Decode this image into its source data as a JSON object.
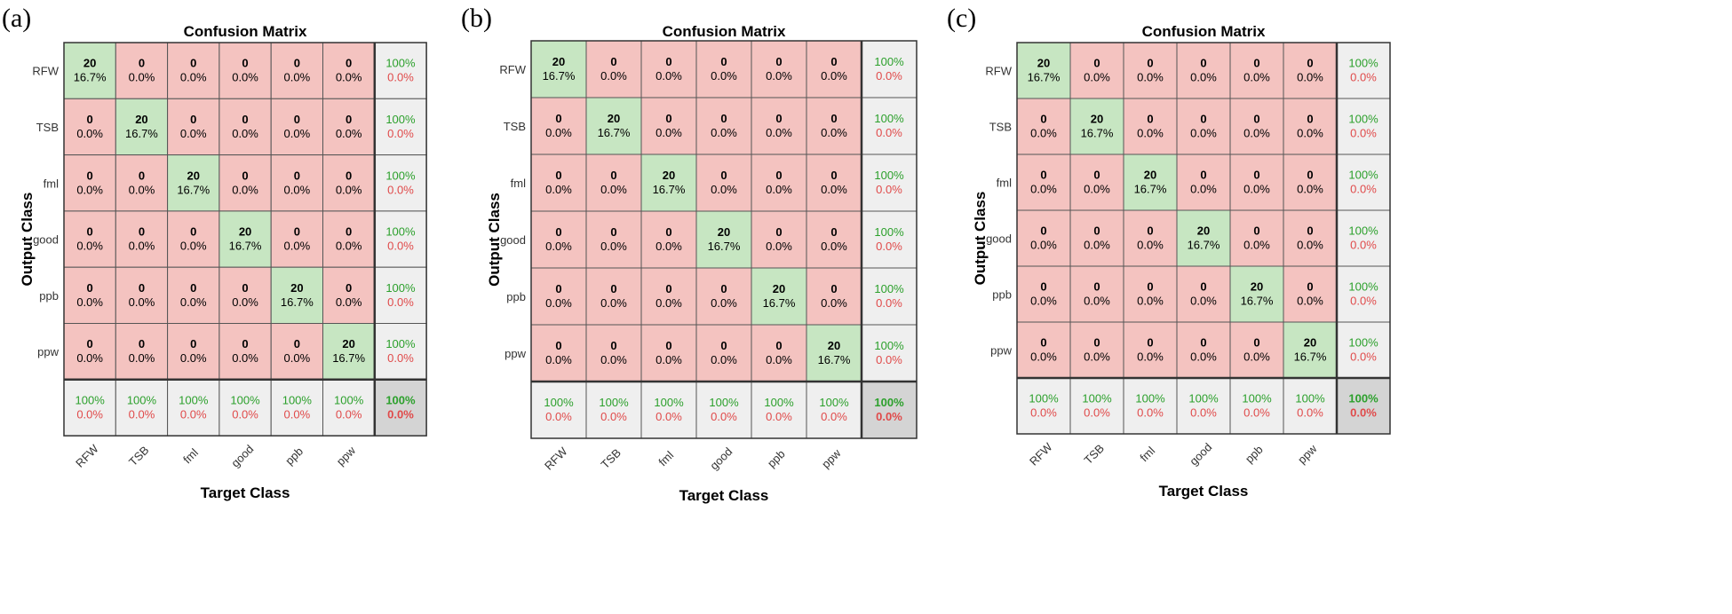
{
  "chart_data": [
    {
      "panel_label": "(a)",
      "type": "heatmap",
      "title": "Confusion Matrix",
      "xlabel": "Target Class",
      "ylabel": "Output Class",
      "classes": [
        "RFW",
        "TSB",
        "fml",
        "good",
        "ppb",
        "ppw"
      ],
      "counts": [
        [
          20,
          0,
          0,
          0,
          0,
          0
        ],
        [
          0,
          20,
          0,
          0,
          0,
          0
        ],
        [
          0,
          0,
          20,
          0,
          0,
          0
        ],
        [
          0,
          0,
          0,
          20,
          0,
          0
        ],
        [
          0,
          0,
          0,
          0,
          20,
          0
        ],
        [
          0,
          0,
          0,
          0,
          0,
          20
        ]
      ],
      "percents": [
        [
          "16.7%",
          "0.0%",
          "0.0%",
          "0.0%",
          "0.0%",
          "0.0%"
        ],
        [
          "0.0%",
          "16.7%",
          "0.0%",
          "0.0%",
          "0.0%",
          "0.0%"
        ],
        [
          "0.0%",
          "0.0%",
          "16.7%",
          "0.0%",
          "0.0%",
          "0.0%"
        ],
        [
          "0.0%",
          "0.0%",
          "0.0%",
          "16.7%",
          "0.0%",
          "0.0%"
        ],
        [
          "0.0%",
          "0.0%",
          "0.0%",
          "0.0%",
          "16.7%",
          "0.0%"
        ],
        [
          "0.0%",
          "0.0%",
          "0.0%",
          "0.0%",
          "0.0%",
          "16.7%"
        ]
      ],
      "row_summary": [
        [
          "100%",
          "0.0%"
        ],
        [
          "100%",
          "0.0%"
        ],
        [
          "100%",
          "0.0%"
        ],
        [
          "100%",
          "0.0%"
        ],
        [
          "100%",
          "0.0%"
        ],
        [
          "100%",
          "0.0%"
        ]
      ],
      "col_summary": [
        [
          "100%",
          "0.0%"
        ],
        [
          "100%",
          "0.0%"
        ],
        [
          "100%",
          "0.0%"
        ],
        [
          "100%",
          "0.0%"
        ],
        [
          "100%",
          "0.0%"
        ],
        [
          "100%",
          "0.0%"
        ]
      ],
      "overall": [
        "100%",
        "0.0%"
      ]
    },
    {
      "panel_label": "(b)",
      "type": "heatmap",
      "title": "Confusion Matrix",
      "xlabel": "Target Class",
      "ylabel": "Output Class",
      "classes": [
        "RFW",
        "TSB",
        "fml",
        "good",
        "ppb",
        "ppw"
      ],
      "counts": [
        [
          20,
          0,
          0,
          0,
          0,
          0
        ],
        [
          0,
          20,
          0,
          0,
          0,
          0
        ],
        [
          0,
          0,
          20,
          0,
          0,
          0
        ],
        [
          0,
          0,
          0,
          20,
          0,
          0
        ],
        [
          0,
          0,
          0,
          0,
          20,
          0
        ],
        [
          0,
          0,
          0,
          0,
          0,
          20
        ]
      ],
      "percents": [
        [
          "16.7%",
          "0.0%",
          "0.0%",
          "0.0%",
          "0.0%",
          "0.0%"
        ],
        [
          "0.0%",
          "16.7%",
          "0.0%",
          "0.0%",
          "0.0%",
          "0.0%"
        ],
        [
          "0.0%",
          "0.0%",
          "16.7%",
          "0.0%",
          "0.0%",
          "0.0%"
        ],
        [
          "0.0%",
          "0.0%",
          "0.0%",
          "16.7%",
          "0.0%",
          "0.0%"
        ],
        [
          "0.0%",
          "0.0%",
          "0.0%",
          "0.0%",
          "16.7%",
          "0.0%"
        ],
        [
          "0.0%",
          "0.0%",
          "0.0%",
          "0.0%",
          "0.0%",
          "16.7%"
        ]
      ],
      "row_summary": [
        [
          "100%",
          "0.0%"
        ],
        [
          "100%",
          "0.0%"
        ],
        [
          "100%",
          "0.0%"
        ],
        [
          "100%",
          "0.0%"
        ],
        [
          "100%",
          "0.0%"
        ],
        [
          "100%",
          "0.0%"
        ]
      ],
      "col_summary": [
        [
          "100%",
          "0.0%"
        ],
        [
          "100%",
          "0.0%"
        ],
        [
          "100%",
          "0.0%"
        ],
        [
          "100%",
          "0.0%"
        ],
        [
          "100%",
          "0.0%"
        ],
        [
          "100%",
          "0.0%"
        ]
      ],
      "overall": [
        "100%",
        "0.0%"
      ]
    },
    {
      "panel_label": "(c)",
      "type": "heatmap",
      "title": "Confusion Matrix",
      "xlabel": "Target Class",
      "ylabel": "Output Class",
      "classes": [
        "RFW",
        "TSB",
        "fml",
        "good",
        "ppb",
        "ppw"
      ],
      "counts": [
        [
          20,
          0,
          0,
          0,
          0,
          0
        ],
        [
          0,
          20,
          0,
          0,
          0,
          0
        ],
        [
          0,
          0,
          20,
          0,
          0,
          0
        ],
        [
          0,
          0,
          0,
          20,
          0,
          0
        ],
        [
          0,
          0,
          0,
          0,
          20,
          0
        ],
        [
          0,
          0,
          0,
          0,
          0,
          20
        ]
      ],
      "percents": [
        [
          "16.7%",
          "0.0%",
          "0.0%",
          "0.0%",
          "0.0%",
          "0.0%"
        ],
        [
          "0.0%",
          "16.7%",
          "0.0%",
          "0.0%",
          "0.0%",
          "0.0%"
        ],
        [
          "0.0%",
          "0.0%",
          "16.7%",
          "0.0%",
          "0.0%",
          "0.0%"
        ],
        [
          "0.0%",
          "0.0%",
          "0.0%",
          "16.7%",
          "0.0%",
          "0.0%"
        ],
        [
          "0.0%",
          "0.0%",
          "0.0%",
          "0.0%",
          "16.7%",
          "0.0%"
        ],
        [
          "0.0%",
          "0.0%",
          "0.0%",
          "0.0%",
          "0.0%",
          "16.7%"
        ]
      ],
      "row_summary": [
        [
          "100%",
          "0.0%"
        ],
        [
          "100%",
          "0.0%"
        ],
        [
          "100%",
          "0.0%"
        ],
        [
          "100%",
          "0.0%"
        ],
        [
          "100%",
          "0.0%"
        ],
        [
          "100%",
          "0.0%"
        ]
      ],
      "col_summary": [
        [
          "100%",
          "0.0%"
        ],
        [
          "100%",
          "0.0%"
        ],
        [
          "100%",
          "0.0%"
        ],
        [
          "100%",
          "0.0%"
        ],
        [
          "100%",
          "0.0%"
        ],
        [
          "100%",
          "0.0%"
        ]
      ],
      "overall": [
        "100%",
        "0.0%"
      ]
    }
  ],
  "colors": {
    "correct_cell": "#c7e6c2",
    "incorrect_cell": "#f4c3c0",
    "summary_cell": "#efefef",
    "overall_cell": "#d4d4d4",
    "grid": "#555555",
    "good_text": "#2ca02c",
    "bad_text": "#e04a4a"
  }
}
